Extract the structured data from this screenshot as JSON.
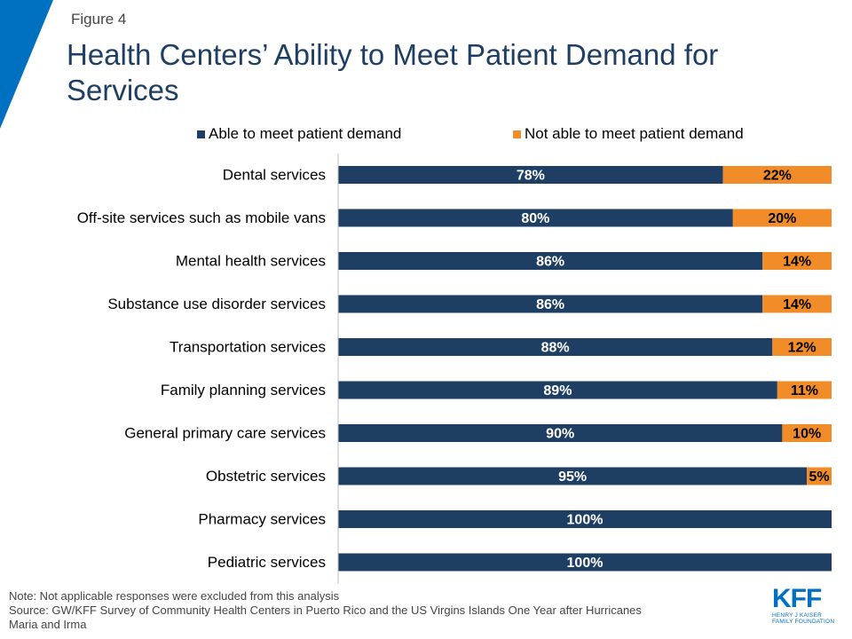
{
  "figure_label": "Figure 4",
  "title": "Health Centers’ Ability to Meet Patient Demand for Services",
  "legend": [
    {
      "label": "Able to meet patient demand",
      "color": "#1e3f63"
    },
    {
      "label": "Not able to meet patient demand",
      "color": "#f28c28"
    }
  ],
  "chart_data": {
    "type": "bar",
    "orientation": "horizontal",
    "stacked": true,
    "categories": [
      "Dental services",
      "Off-site services such as mobile vans",
      "Mental health services",
      "Substance use disorder services",
      "Transportation services",
      "Family planning services",
      "General primary care services",
      "Obstetric services",
      "Pharmacy services",
      "Pediatric services"
    ],
    "series": [
      {
        "name": "Able to meet patient demand",
        "color": "#1e3f63",
        "values": [
          78,
          80,
          86,
          86,
          88,
          89,
          90,
          95,
          100,
          100
        ],
        "labels": [
          "78%",
          "80%",
          "86%",
          "86%",
          "88%",
          "89%",
          "90%",
          "95%",
          "100%",
          "100%"
        ]
      },
      {
        "name": "Not able to meet patient demand",
        "color": "#f28c28",
        "values": [
          22,
          20,
          14,
          14,
          12,
          11,
          10,
          5,
          0,
          0
        ],
        "labels": [
          "22%",
          "20%",
          "14%",
          "14%",
          "12%",
          "11%",
          "10%",
          "5%",
          "",
          ""
        ]
      }
    ],
    "xlim": [
      0,
      100
    ],
    "legend_position": "top"
  },
  "notes": {
    "note": "Note: Not applicable responses were  excluded from this analysis",
    "source": "Source: GW/KFF Survey of Community Health Centers in Puerto Rico and the US Virgins Islands One Year after Hurricanes Maria and Irma"
  },
  "logo": {
    "mark": "KFF",
    "line1": "HENRY J KAISER",
    "line2": "FAMILY FOUNDATION"
  }
}
